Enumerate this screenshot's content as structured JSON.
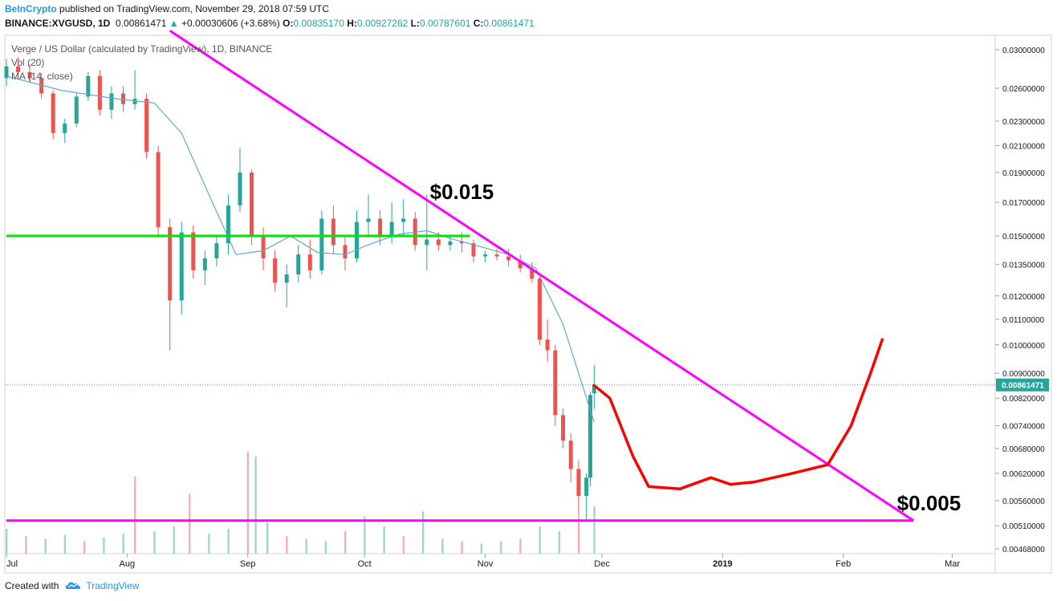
{
  "header": {
    "brand": "BeInCrypto",
    "published_text": "published on TradingView.com, November 29, 2018 07:59 UTC",
    "symbol": "BINANCE:XVGUSD, 1D",
    "last": "0.00861471",
    "change": "+0.00030606 (+3.68%)",
    "o_label": "O:",
    "o": "0.00835170",
    "h_label": "H:",
    "h": "0.00927262",
    "l_label": "L:",
    "l": "0.00787601",
    "c_label": "C:",
    "c": "0.00861471"
  },
  "legend": {
    "title": "Verge / US Dollar (calculated by TradingView), 1D, BINANCE",
    "vol": "Vol (20)",
    "ma": "MA (14, close)"
  },
  "footer": {
    "created_with": "Created with",
    "tradingview": "TradingView"
  },
  "colors": {
    "up": "#26a69a",
    "down": "#ef5350",
    "ma": "#5ea8d6",
    "support": "#00e600",
    "trend": "#ff00ff",
    "drawing": "#ff0000"
  },
  "chart_data": {
    "type": "candlestick",
    "y_ticks": [
      "0.03000000",
      "0.02600000",
      "0.02300000",
      "0.02100000",
      "0.01900000",
      "0.01700000",
      "0.01500000",
      "0.01350000",
      "0.01200000",
      "0.01100000",
      "0.01000000",
      "0.00900000",
      "0.00820000",
      "0.00740000",
      "0.00680000",
      "0.00620000",
      "0.00560000",
      "0.00510000",
      "0.00468000"
    ],
    "x_ticks": [
      "Jul",
      "Aug",
      "Sep",
      "Oct",
      "Nov",
      "Dec",
      "2019",
      "Feb",
      "Mar"
    ],
    "x_tick_dates": [
      "2018-07-01",
      "2018-08-01",
      "2018-09-01",
      "2018-10-01",
      "2018-11-01",
      "2018-12-01",
      "2019-01-01",
      "2019-02-01",
      "2019-03-01"
    ],
    "last_price_label": "0.00861471",
    "annotations": [
      {
        "text": "$0.015",
        "price": 0.0172,
        "date": "2018-10-26"
      },
      {
        "text": "$0.005",
        "price": 0.0054,
        "date": "2019-02-23"
      }
    ],
    "support_line": {
      "price": 0.015,
      "from": "2018-07-01",
      "to": "2018-10-28"
    },
    "bottom_line": {
      "price": 0.0052,
      "from": "2018-07-01",
      "to": "2019-02-19"
    },
    "trend_line": {
      "from": {
        "date": "2018-08-12",
        "price": 0.0322
      },
      "to": {
        "date": "2019-02-19",
        "price": 0.0052
      }
    },
    "candles": [
      {
        "date": "2018-07-01",
        "o": 0.027,
        "h": 0.029,
        "l": 0.0262,
        "c": 0.0282
      },
      {
        "date": "2018-07-04",
        "o": 0.0282,
        "h": 0.0292,
        "l": 0.027,
        "c": 0.0276
      },
      {
        "date": "2018-07-07",
        "o": 0.0276,
        "h": 0.0284,
        "l": 0.0265,
        "c": 0.027
      },
      {
        "date": "2018-07-10",
        "o": 0.027,
        "h": 0.0275,
        "l": 0.025,
        "c": 0.0255
      },
      {
        "date": "2018-07-13",
        "o": 0.0255,
        "h": 0.0258,
        "l": 0.0215,
        "c": 0.022
      },
      {
        "date": "2018-07-16",
        "o": 0.022,
        "h": 0.0232,
        "l": 0.0212,
        "c": 0.0228
      },
      {
        "date": "2018-07-19",
        "o": 0.0228,
        "h": 0.0255,
        "l": 0.0225,
        "c": 0.0252
      },
      {
        "date": "2018-07-22",
        "o": 0.0252,
        "h": 0.0276,
        "l": 0.0248,
        "c": 0.0272
      },
      {
        "date": "2018-07-25",
        "o": 0.0272,
        "h": 0.0278,
        "l": 0.0235,
        "c": 0.024
      },
      {
        "date": "2018-07-28",
        "o": 0.024,
        "h": 0.0262,
        "l": 0.0232,
        "c": 0.0255
      },
      {
        "date": "2018-07-31",
        "o": 0.0255,
        "h": 0.0262,
        "l": 0.0238,
        "c": 0.0245
      },
      {
        "date": "2018-08-03",
        "o": 0.0245,
        "h": 0.0278,
        "l": 0.024,
        "c": 0.025
      },
      {
        "date": "2018-08-06",
        "o": 0.025,
        "h": 0.0255,
        "l": 0.02,
        "c": 0.0205
      },
      {
        "date": "2018-08-09",
        "o": 0.0205,
        "h": 0.021,
        "l": 0.015,
        "c": 0.0155
      },
      {
        "date": "2018-08-12",
        "o": 0.0155,
        "h": 0.016,
        "l": 0.0098,
        "c": 0.0118
      },
      {
        "date": "2018-08-15",
        "o": 0.0118,
        "h": 0.0158,
        "l": 0.0112,
        "c": 0.0152
      },
      {
        "date": "2018-08-18",
        "o": 0.0152,
        "h": 0.0156,
        "l": 0.0128,
        "c": 0.0132
      },
      {
        "date": "2018-08-21",
        "o": 0.0132,
        "h": 0.0142,
        "l": 0.0125,
        "c": 0.0138
      },
      {
        "date": "2018-08-24",
        "o": 0.0138,
        "h": 0.015,
        "l": 0.0134,
        "c": 0.0146
      },
      {
        "date": "2018-08-27",
        "o": 0.0146,
        "h": 0.0175,
        "l": 0.014,
        "c": 0.0168
      },
      {
        "date": "2018-08-30",
        "o": 0.0168,
        "h": 0.0208,
        "l": 0.0164,
        "c": 0.019
      },
      {
        "date": "2018-09-02",
        "o": 0.019,
        "h": 0.0192,
        "l": 0.0145,
        "c": 0.015
      },
      {
        "date": "2018-09-05",
        "o": 0.015,
        "h": 0.0155,
        "l": 0.0132,
        "c": 0.0138
      },
      {
        "date": "2018-09-08",
        "o": 0.0138,
        "h": 0.0142,
        "l": 0.0122,
        "c": 0.0126
      },
      {
        "date": "2018-09-11",
        "o": 0.0126,
        "h": 0.0135,
        "l": 0.0115,
        "c": 0.013
      },
      {
        "date": "2018-09-14",
        "o": 0.013,
        "h": 0.0145,
        "l": 0.0126,
        "c": 0.014
      },
      {
        "date": "2018-09-17",
        "o": 0.014,
        "h": 0.0148,
        "l": 0.0128,
        "c": 0.0132
      },
      {
        "date": "2018-09-20",
        "o": 0.0132,
        "h": 0.0165,
        "l": 0.013,
        "c": 0.016
      },
      {
        "date": "2018-09-23",
        "o": 0.016,
        "h": 0.0168,
        "l": 0.014,
        "c": 0.0145
      },
      {
        "date": "2018-09-26",
        "o": 0.0145,
        "h": 0.015,
        "l": 0.0132,
        "c": 0.0138
      },
      {
        "date": "2018-09-29",
        "o": 0.0138,
        "h": 0.0165,
        "l": 0.0136,
        "c": 0.0158
      },
      {
        "date": "2018-10-02",
        "o": 0.0158,
        "h": 0.0175,
        "l": 0.015,
        "c": 0.016
      },
      {
        "date": "2018-10-05",
        "o": 0.016,
        "h": 0.0165,
        "l": 0.0145,
        "c": 0.015
      },
      {
        "date": "2018-10-08",
        "o": 0.015,
        "h": 0.017,
        "l": 0.0146,
        "c": 0.0158
      },
      {
        "date": "2018-10-11",
        "o": 0.0158,
        "h": 0.0172,
        "l": 0.015,
        "c": 0.016
      },
      {
        "date": "2018-10-14",
        "o": 0.016,
        "h": 0.0164,
        "l": 0.0142,
        "c": 0.0145
      },
      {
        "date": "2018-10-17",
        "o": 0.0145,
        "h": 0.0175,
        "l": 0.0132,
        "c": 0.0148
      },
      {
        "date": "2018-10-20",
        "o": 0.0148,
        "h": 0.0152,
        "l": 0.0142,
        "c": 0.0145
      },
      {
        "date": "2018-10-23",
        "o": 0.0145,
        "h": 0.015,
        "l": 0.0142,
        "c": 0.0147
      },
      {
        "date": "2018-10-26",
        "o": 0.0147,
        "h": 0.0152,
        "l": 0.0141,
        "c": 0.0146
      },
      {
        "date": "2018-10-29",
        "o": 0.0146,
        "h": 0.0148,
        "l": 0.0136,
        "c": 0.0139
      },
      {
        "date": "2018-11-01",
        "o": 0.0139,
        "h": 0.0142,
        "l": 0.0136,
        "c": 0.014
      },
      {
        "date": "2018-11-04",
        "o": 0.014,
        "h": 0.0143,
        "l": 0.0137,
        "c": 0.0139
      },
      {
        "date": "2018-11-07",
        "o": 0.0139,
        "h": 0.0143,
        "l": 0.0134,
        "c": 0.0137
      },
      {
        "date": "2018-11-10",
        "o": 0.0137,
        "h": 0.014,
        "l": 0.0131,
        "c": 0.0133
      },
      {
        "date": "2018-11-13",
        "o": 0.0133,
        "h": 0.0136,
        "l": 0.0126,
        "c": 0.0128
      },
      {
        "date": "2018-11-15",
        "o": 0.0128,
        "h": 0.013,
        "l": 0.01,
        "c": 0.0102
      },
      {
        "date": "2018-11-17",
        "o": 0.0102,
        "h": 0.011,
        "l": 0.0094,
        "c": 0.0098
      },
      {
        "date": "2018-11-19",
        "o": 0.0098,
        "h": 0.01,
        "l": 0.0074,
        "c": 0.0077
      },
      {
        "date": "2018-11-21",
        "o": 0.0077,
        "h": 0.0079,
        "l": 0.0068,
        "c": 0.007
      },
      {
        "date": "2018-11-23",
        "o": 0.007,
        "h": 0.0072,
        "l": 0.006,
        "c": 0.0063
      },
      {
        "date": "2018-11-25",
        "o": 0.0063,
        "h": 0.0065,
        "l": 0.0053,
        "c": 0.0057
      },
      {
        "date": "2018-11-27",
        "o": 0.0057,
        "h": 0.0062,
        "l": 0.0052,
        "c": 0.0061
      },
      {
        "date": "2018-11-28",
        "o": 0.0061,
        "h": 0.0084,
        "l": 0.0059,
        "c": 0.0083
      },
      {
        "date": "2018-11-29",
        "o": 0.0083517,
        "h": 0.00927262,
        "l": 0.00787601,
        "c": 0.00861471
      }
    ],
    "ma_values": [
      {
        "date": "2018-07-01",
        "v": 0.0272
      },
      {
        "date": "2018-07-15",
        "v": 0.0258
      },
      {
        "date": "2018-07-29",
        "v": 0.025
      },
      {
        "date": "2018-08-08",
        "v": 0.0246
      },
      {
        "date": "2018-08-15",
        "v": 0.022
      },
      {
        "date": "2018-08-22",
        "v": 0.0175
      },
      {
        "date": "2018-08-29",
        "v": 0.014
      },
      {
        "date": "2018-09-05",
        "v": 0.0142
      },
      {
        "date": "2018-09-12",
        "v": 0.015
      },
      {
        "date": "2018-09-19",
        "v": 0.0141
      },
      {
        "date": "2018-09-26",
        "v": 0.014
      },
      {
        "date": "2018-10-03",
        "v": 0.0146
      },
      {
        "date": "2018-10-10",
        "v": 0.0151
      },
      {
        "date": "2018-10-17",
        "v": 0.0153
      },
      {
        "date": "2018-10-24",
        "v": 0.0148
      },
      {
        "date": "2018-10-31",
        "v": 0.0144
      },
      {
        "date": "2018-11-07",
        "v": 0.014
      },
      {
        "date": "2018-11-14",
        "v": 0.0133
      },
      {
        "date": "2018-11-21",
        "v": 0.0108
      },
      {
        "date": "2018-11-25",
        "v": 0.009
      },
      {
        "date": "2018-11-29",
        "v": 0.0075
      }
    ],
    "volume": [
      {
        "date": "2018-07-01",
        "v": 20
      },
      {
        "date": "2018-07-06",
        "v": 14
      },
      {
        "date": "2018-07-11",
        "v": 12
      },
      {
        "date": "2018-07-16",
        "v": 15
      },
      {
        "date": "2018-07-21",
        "v": 10
      },
      {
        "date": "2018-07-26",
        "v": 13
      },
      {
        "date": "2018-07-31",
        "v": 16
      },
      {
        "date": "2018-08-03",
        "v": 62
      },
      {
        "date": "2018-08-08",
        "v": 18
      },
      {
        "date": "2018-08-13",
        "v": 22
      },
      {
        "date": "2018-08-17",
        "v": 48
      },
      {
        "date": "2018-08-22",
        "v": 16
      },
      {
        "date": "2018-08-27",
        "v": 20
      },
      {
        "date": "2018-09-01",
        "v": 82
      },
      {
        "date": "2018-09-03",
        "v": 78
      },
      {
        "date": "2018-09-06",
        "v": 25
      },
      {
        "date": "2018-09-11",
        "v": 14
      },
      {
        "date": "2018-09-16",
        "v": 12
      },
      {
        "date": "2018-09-21",
        "v": 10
      },
      {
        "date": "2018-09-26",
        "v": 18
      },
      {
        "date": "2018-10-01",
        "v": 30
      },
      {
        "date": "2018-10-06",
        "v": 22
      },
      {
        "date": "2018-10-11",
        "v": 14
      },
      {
        "date": "2018-10-16",
        "v": 34
      },
      {
        "date": "2018-10-21",
        "v": 12
      },
      {
        "date": "2018-10-26",
        "v": 10
      },
      {
        "date": "2018-10-31",
        "v": 8
      },
      {
        "date": "2018-11-05",
        "v": 10
      },
      {
        "date": "2018-11-10",
        "v": 12
      },
      {
        "date": "2018-11-15",
        "v": 22
      },
      {
        "date": "2018-11-20",
        "v": 18
      },
      {
        "date": "2018-11-25",
        "v": 30
      },
      {
        "date": "2018-11-29",
        "v": 38
      }
    ],
    "drawn_projection": [
      {
        "date": "2018-11-29",
        "price": 0.0086
      },
      {
        "date": "2018-12-03",
        "price": 0.0082
      },
      {
        "date": "2018-12-09",
        "price": 0.0066
      },
      {
        "date": "2018-12-13",
        "price": 0.0059
      },
      {
        "date": "2018-12-21",
        "price": 0.00585
      },
      {
        "date": "2018-12-29",
        "price": 0.0061
      },
      {
        "date": "2019-01-03",
        "price": 0.00595
      },
      {
        "date": "2019-01-09",
        "price": 0.006
      },
      {
        "date": "2019-01-19",
        "price": 0.0062
      },
      {
        "date": "2019-01-28",
        "price": 0.0064
      },
      {
        "date": "2019-02-03",
        "price": 0.0074
      },
      {
        "date": "2019-02-08",
        "price": 0.009
      },
      {
        "date": "2019-02-11",
        "price": 0.0102
      }
    ]
  }
}
